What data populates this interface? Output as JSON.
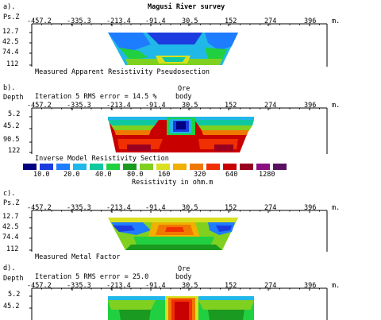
{
  "title": "Magusi River survey",
  "panels": [
    {
      "letter": "a).",
      "y_heading_1": "Ps.Z",
      "y_heading_2": "",
      "header_text": "",
      "ore_label": [
        "",
        ""
      ],
      "x_ticks": [
        "-457.2",
        "-335.3",
        "-213.4",
        "-91.4",
        "30.5",
        "152",
        "274",
        "396"
      ],
      "unit": "m.",
      "y_ticks": [
        "12.7",
        "42.5",
        "74.4",
        "112"
      ],
      "caption": "Measured Apparent Resistivity Pseudosection"
    },
    {
      "letter": "b).",
      "y_heading_1": "Depth",
      "y_heading_2": "",
      "header_text": "Iteration 5 RMS error = 14.5 %",
      "ore_label": [
        "Ore",
        "body"
      ],
      "x_ticks": [
        "-457.2",
        "-335.3",
        "-213.4",
        "-91.4",
        "30.5",
        "152",
        "274",
        "396"
      ],
      "unit": "m.",
      "y_ticks": [
        "5.2",
        "45.2",
        "90.5",
        "122"
      ],
      "caption": "Inverse Model Resistivity Section"
    },
    {
      "letter": "c).",
      "y_heading_1": "Ps.Z",
      "y_heading_2": "",
      "header_text": "",
      "ore_label": [
        "",
        ""
      ],
      "x_ticks": [
        "-457.2",
        "-335.3",
        "-213.4",
        "-91.4",
        "30.5",
        "152",
        "274",
        "396"
      ],
      "unit": "m.",
      "y_ticks": [
        "12.7",
        "42.5",
        "74.4",
        "112"
      ],
      "caption": "Measured Metal Factor"
    },
    {
      "letter": "d).",
      "y_heading_1": "Depth",
      "y_heading_2": "",
      "header_text": "Iteration 5 RMS error = 25.0",
      "ore_label": [
        "Ore",
        "body"
      ],
      "x_ticks": [
        "-457.2",
        "-335.3",
        "-213.4",
        "-91.4",
        "30.5",
        "152",
        "274",
        "396"
      ],
      "unit": "m.",
      "y_ticks": [
        "5.2",
        "45.2"
      ],
      "caption": ""
    }
  ],
  "legend": {
    "title": "Resistivity in ohm.m",
    "labels": [
      "10.0",
      "20.0",
      "40.0",
      "80.0",
      "160",
      "320",
      "640",
      "1280"
    ],
    "colors": [
      "#000080",
      "#1c3ce0",
      "#1e7cff",
      "#20b8e8",
      "#10c8a0",
      "#20d040",
      "#1a9a20",
      "#80d020",
      "#d8e020",
      "#f0b000",
      "#f07800",
      "#f03000",
      "#c80000",
      "#9a0020",
      "#8a1080",
      "#5a1060"
    ]
  },
  "chart_data": [
    {
      "type": "heatmap",
      "title": "Measured Apparent Resistivity Pseudosection",
      "xlabel": "m.",
      "ylabel": "Ps.Z",
      "x_ticks": [
        -457.2,
        -335.3,
        -213.4,
        -91.4,
        30.5,
        152,
        274,
        396
      ],
      "y_ticks": [
        12.7,
        42.5,
        74.4,
        112
      ]
    },
    {
      "type": "heatmap",
      "title": "Inverse Model Resistivity Section",
      "xlabel": "m.",
      "ylabel": "Depth",
      "rms_error": 14.5,
      "iteration": 5,
      "x_ticks": [
        -457.2,
        -335.3,
        -213.4,
        -91.4,
        30.5,
        152,
        274,
        396
      ],
      "y_ticks": [
        5.2,
        45.2,
        90.5,
        122
      ]
    },
    {
      "type": "heatmap",
      "title": "Measured Metal Factor",
      "xlabel": "m.",
      "ylabel": "Ps.Z",
      "x_ticks": [
        -457.2,
        -335.3,
        -213.4,
        -91.4,
        30.5,
        152,
        274,
        396
      ],
      "y_ticks": [
        12.7,
        42.5,
        74.4,
        112
      ]
    },
    {
      "type": "heatmap",
      "title": "",
      "xlabel": "m.",
      "ylabel": "Depth",
      "rms_error": 25.0,
      "iteration": 5,
      "x_ticks": [
        -457.2,
        -335.3,
        -213.4,
        -91.4,
        30.5,
        152,
        274,
        396
      ],
      "y_ticks": [
        5.2,
        45.2
      ]
    }
  ]
}
